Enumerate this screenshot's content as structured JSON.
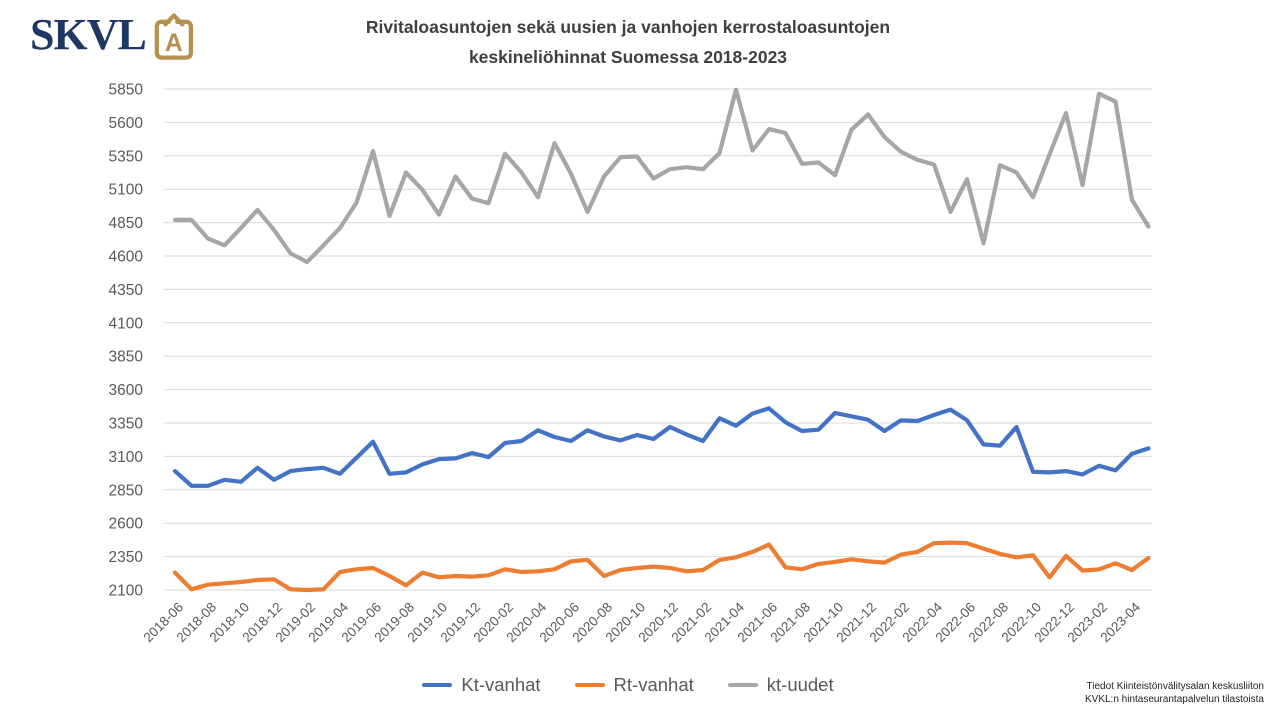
{
  "logo": {
    "text": "SKVL",
    "icon_letter": "A",
    "navy": "#1E3765",
    "gold": "#B6914E"
  },
  "title": {
    "line1": "Rivitaloasuntojen sekä uusien ja vanhojen kerrostaloasuntojen",
    "line2": "keskineliöhinnat Suomessa 2018-2023"
  },
  "source_note": {
    "line1": "Tiedot Kiinteistönvälitysalan keskusliiton",
    "line2": "KVKL:n hintaseurantapalvelun tilastoista"
  },
  "chart_data": {
    "type": "line",
    "title": "Rivitaloasuntojen sekä uusien ja vanhojen kerrostaloasuntojen keskineliöhinnat Suomessa 2018-2023",
    "ylabel": "",
    "xlabel": "",
    "ylim": [
      2100,
      5850
    ],
    "y_ticks": [
      5850,
      5600,
      5350,
      5100,
      4850,
      4600,
      4350,
      4100,
      3850,
      3600,
      3350,
      3100,
      2850,
      2600,
      2350,
      2100
    ],
    "x_tick_labels": [
      "2018-06",
      "2018-08",
      "2018-10",
      "2018-12",
      "2019-02",
      "2019-04",
      "2019-06",
      "2019-08",
      "2019-10",
      "2019-12",
      "2020-02",
      "2020-04",
      "2020-06",
      "2020-08",
      "2020-10",
      "2020-12",
      "2021-02",
      "2021-04",
      "2021-06",
      "2021-08",
      "2021-10",
      "2021-12",
      "2022-02",
      "2022-04",
      "2022-06",
      "2022-08",
      "2022-10",
      "2022-12",
      "2023-02",
      "2023-04"
    ],
    "points_per_tick": 2,
    "grid": "horizontal",
    "grid_color": "#D9D9D9",
    "tick_color": "#595959",
    "legend_position": "bottom",
    "series": [
      {
        "name": "Kt-vanhat",
        "color": "#4472C4",
        "values": [
          2990,
          2880,
          2880,
          2925,
          2910,
          3015,
          2925,
          2990,
          3005,
          3015,
          2970,
          3090,
          3210,
          2970,
          2980,
          3040,
          3080,
          3085,
          3125,
          3095,
          3200,
          3215,
          3295,
          3245,
          3215,
          3295,
          3250,
          3220,
          3260,
          3230,
          3320,
          3265,
          3215,
          3385,
          3330,
          3420,
          3460,
          3355,
          3290,
          3300,
          3425,
          3400,
          3375,
          3290,
          3370,
          3365,
          3410,
          3450,
          3370,
          3190,
          3180,
          3320,
          2985,
          2980,
          2990,
          2965,
          3030,
          2995,
          3120,
          3160
        ]
      },
      {
        "name": "Rt-vanhat",
        "color": "#ED7D31",
        "values": [
          2230,
          2105,
          2140,
          2150,
          2160,
          2175,
          2180,
          2105,
          2100,
          2105,
          2235,
          2255,
          2265,
          2205,
          2135,
          2230,
          2195,
          2205,
          2200,
          2210,
          2255,
          2235,
          2240,
          2255,
          2315,
          2325,
          2205,
          2250,
          2265,
          2275,
          2265,
          2240,
          2250,
          2325,
          2345,
          2385,
          2440,
          2270,
          2255,
          2295,
          2310,
          2330,
          2315,
          2305,
          2365,
          2385,
          2450,
          2455,
          2450,
          2410,
          2370,
          2345,
          2360,
          2195,
          2355,
          2245,
          2255,
          2300,
          2250,
          2340
        ]
      },
      {
        "name": "kt-uudet",
        "color": "#A6A6A6",
        "values": [
          4870,
          4870,
          4730,
          4680,
          4810,
          4945,
          4795,
          4620,
          4555,
          4680,
          4810,
          5000,
          5385,
          4900,
          5225,
          5095,
          4910,
          5195,
          5030,
          4995,
          5365,
          5225,
          5040,
          5445,
          5215,
          4930,
          5195,
          5340,
          5345,
          5180,
          5250,
          5265,
          5250,
          5370,
          5845,
          5390,
          5550,
          5520,
          5290,
          5300,
          5205,
          5545,
          5660,
          5490,
          5380,
          5320,
          5285,
          4930,
          5175,
          4695,
          5280,
          5225,
          5040,
          5360,
          5670,
          5130,
          5815,
          5755,
          5020,
          4820
        ]
      }
    ]
  }
}
